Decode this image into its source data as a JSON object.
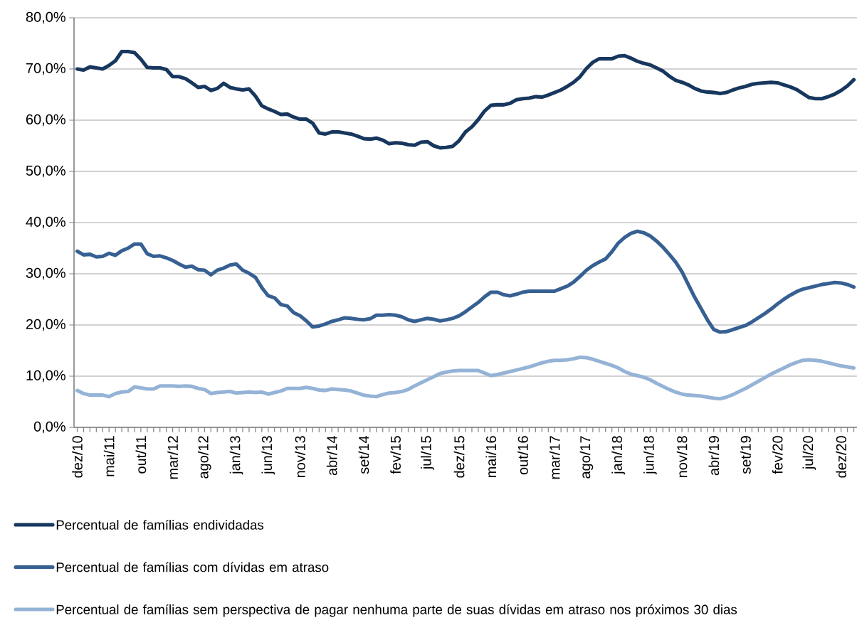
{
  "chart_data": {
    "type": "line",
    "categories": [
      "dez/10",
      null,
      null,
      null,
      null,
      "mai/11",
      null,
      null,
      null,
      null,
      "out/11",
      null,
      null,
      null,
      null,
      "mar/12",
      null,
      null,
      null,
      null,
      "ago/12",
      null,
      null,
      null,
      null,
      "jan/13",
      null,
      null,
      null,
      null,
      "jun/13",
      null,
      null,
      null,
      null,
      "nov/13",
      null,
      null,
      null,
      null,
      "abr/14",
      null,
      null,
      null,
      null,
      "set/14",
      null,
      null,
      null,
      null,
      "fev/15",
      null,
      null,
      null,
      null,
      "jul/15",
      null,
      null,
      null,
      null,
      "dez/15",
      null,
      null,
      null,
      null,
      "mai/16",
      null,
      null,
      null,
      null,
      "out/16",
      null,
      null,
      null,
      null,
      "mar/17",
      null,
      null,
      null,
      null,
      "ago/17",
      null,
      null,
      null,
      null,
      "jan/18",
      null,
      null,
      null,
      null,
      "jun/18",
      null,
      null,
      null,
      null,
      "nov/18",
      null,
      null,
      null,
      null,
      "abr/19",
      null,
      null,
      null,
      null,
      "set/19",
      null,
      null,
      null,
      null,
      "fev/20",
      null,
      null,
      null,
      null,
      "jul/20",
      null,
      null,
      null,
      null,
      "dez/20",
      null,
      null
    ],
    "series": [
      {
        "name": "Percentual de famílias endividadas",
        "color": "#17375e",
        "values": [
          70.0,
          69.8,
          70.4,
          70.2,
          70.0,
          70.7,
          71.6,
          73.4,
          73.4,
          73.2,
          71.9,
          70.3,
          70.2,
          70.2,
          69.9,
          68.5,
          68.5,
          68.1,
          67.3,
          66.4,
          66.6,
          65.8,
          66.2,
          67.2,
          66.4,
          66.1,
          65.9,
          66.1,
          64.7,
          62.8,
          62.2,
          61.7,
          61.1,
          61.2,
          60.6,
          60.2,
          60.2,
          59.4,
          57.5,
          57.3,
          57.7,
          57.7,
          57.5,
          57.3,
          56.9,
          56.4,
          56.3,
          56.5,
          56.1,
          55.4,
          55.6,
          55.5,
          55.2,
          55.1,
          55.7,
          55.8,
          55.0,
          54.6,
          54.7,
          54.9,
          56.0,
          57.7,
          58.7,
          60.1,
          61.8,
          62.9,
          63.0,
          63.0,
          63.3,
          64.0,
          64.2,
          64.3,
          64.6,
          64.5,
          64.9,
          65.4,
          65.9,
          66.6,
          67.4,
          68.5,
          70.1,
          71.3,
          72.0,
          72.0,
          72.0,
          72.5,
          72.6,
          72.1,
          71.5,
          71.1,
          70.8,
          70.2,
          69.6,
          68.6,
          67.8,
          67.4,
          66.9,
          66.2,
          65.7,
          65.5,
          65.4,
          65.2,
          65.4,
          65.9,
          66.3,
          66.6,
          67.0,
          67.2,
          67.3,
          67.4,
          67.3,
          66.9,
          66.5,
          66.0,
          65.2,
          64.4,
          64.2,
          64.2,
          64.6,
          65.1,
          65.8,
          66.7,
          67.9
        ]
      },
      {
        "name": "Percentual de famílias com dívidas em atraso",
        "color": "#376092",
        "values": [
          34.4,
          33.7,
          33.8,
          33.3,
          33.4,
          34.0,
          33.6,
          34.5,
          35.0,
          35.8,
          35.8,
          33.9,
          33.4,
          33.5,
          33.1,
          32.6,
          31.9,
          31.3,
          31.5,
          30.8,
          30.7,
          29.8,
          30.7,
          31.1,
          31.7,
          31.9,
          30.7,
          30.1,
          29.3,
          27.3,
          25.7,
          25.3,
          24.0,
          23.7,
          22.4,
          21.8,
          20.8,
          19.6,
          19.8,
          20.2,
          20.7,
          21.0,
          21.4,
          21.3,
          21.1,
          21.0,
          21.2,
          21.9,
          21.9,
          22.0,
          21.9,
          21.6,
          21.0,
          20.7,
          21.0,
          21.3,
          21.1,
          20.8,
          21.0,
          21.3,
          21.8,
          22.6,
          23.5,
          24.4,
          25.5,
          26.4,
          26.4,
          25.9,
          25.7,
          26.0,
          26.4,
          26.6,
          26.6,
          26.6,
          26.6,
          26.6,
          27.1,
          27.6,
          28.4,
          29.5,
          30.7,
          31.6,
          32.3,
          32.9,
          34.3,
          36.0,
          37.1,
          37.9,
          38.3,
          38.0,
          37.4,
          36.4,
          35.2,
          33.8,
          32.3,
          30.4,
          27.9,
          25.4,
          23.2,
          21.0,
          19.1,
          18.6,
          18.7,
          19.1,
          19.5,
          19.9,
          20.6,
          21.4,
          22.2,
          23.1,
          24.1,
          25.0,
          25.8,
          26.5,
          27.0,
          27.3,
          27.6,
          27.9,
          28.1,
          28.3,
          28.2,
          27.9,
          27.4
        ]
      },
      {
        "name": "Percentual de famílias sem perspectiva de pagar nenhuma parte de suas dívidas em atraso nos próximos 30 dias",
        "color": "#95b3d7",
        "values": [
          7.2,
          6.6,
          6.3,
          6.3,
          6.3,
          6.0,
          6.6,
          6.9,
          7.0,
          7.9,
          7.7,
          7.5,
          7.5,
          8.1,
          8.1,
          8.1,
          8.0,
          8.1,
          8.0,
          7.6,
          7.4,
          6.6,
          6.8,
          6.9,
          7.0,
          6.7,
          6.8,
          6.9,
          6.8,
          6.9,
          6.5,
          6.8,
          7.1,
          7.6,
          7.6,
          7.6,
          7.8,
          7.6,
          7.3,
          7.2,
          7.5,
          7.4,
          7.3,
          7.1,
          6.7,
          6.3,
          6.1,
          6.0,
          6.4,
          6.7,
          6.8,
          7.0,
          7.4,
          8.1,
          8.7,
          9.3,
          9.9,
          10.5,
          10.8,
          11.0,
          11.1,
          11.1,
          11.1,
          11.1,
          10.6,
          10.1,
          10.3,
          10.6,
          10.9,
          11.2,
          11.5,
          11.8,
          12.2,
          12.6,
          12.9,
          13.1,
          13.1,
          13.2,
          13.4,
          13.7,
          13.6,
          13.3,
          12.9,
          12.5,
          12.1,
          11.6,
          10.9,
          10.4,
          10.1,
          9.8,
          9.3,
          8.6,
          8.0,
          7.4,
          6.9,
          6.5,
          6.3,
          6.2,
          6.1,
          5.9,
          5.7,
          5.6,
          5.9,
          6.4,
          7.0,
          7.6,
          8.3,
          9.0,
          9.7,
          10.4,
          11.0,
          11.6,
          12.2,
          12.7,
          13.1,
          13.2,
          13.1,
          12.9,
          12.6,
          12.3,
          12.0,
          11.8,
          11.6
        ]
      }
    ],
    "ylim": [
      0,
      80
    ],
    "yticks": [
      {
        "value": 0,
        "label": "0,0%"
      },
      {
        "value": 10,
        "label": "10,0%"
      },
      {
        "value": 20,
        "label": "20,0%"
      },
      {
        "value": 30,
        "label": "30,0%"
      },
      {
        "value": 40,
        "label": "40,0%"
      },
      {
        "value": 50,
        "label": "50,0%"
      },
      {
        "value": 60,
        "label": "60,0%"
      },
      {
        "value": 70,
        "label": "70,0%"
      },
      {
        "value": 80,
        "label": "80,0%"
      }
    ],
    "grid": "y",
    "legend": "bottom"
  }
}
